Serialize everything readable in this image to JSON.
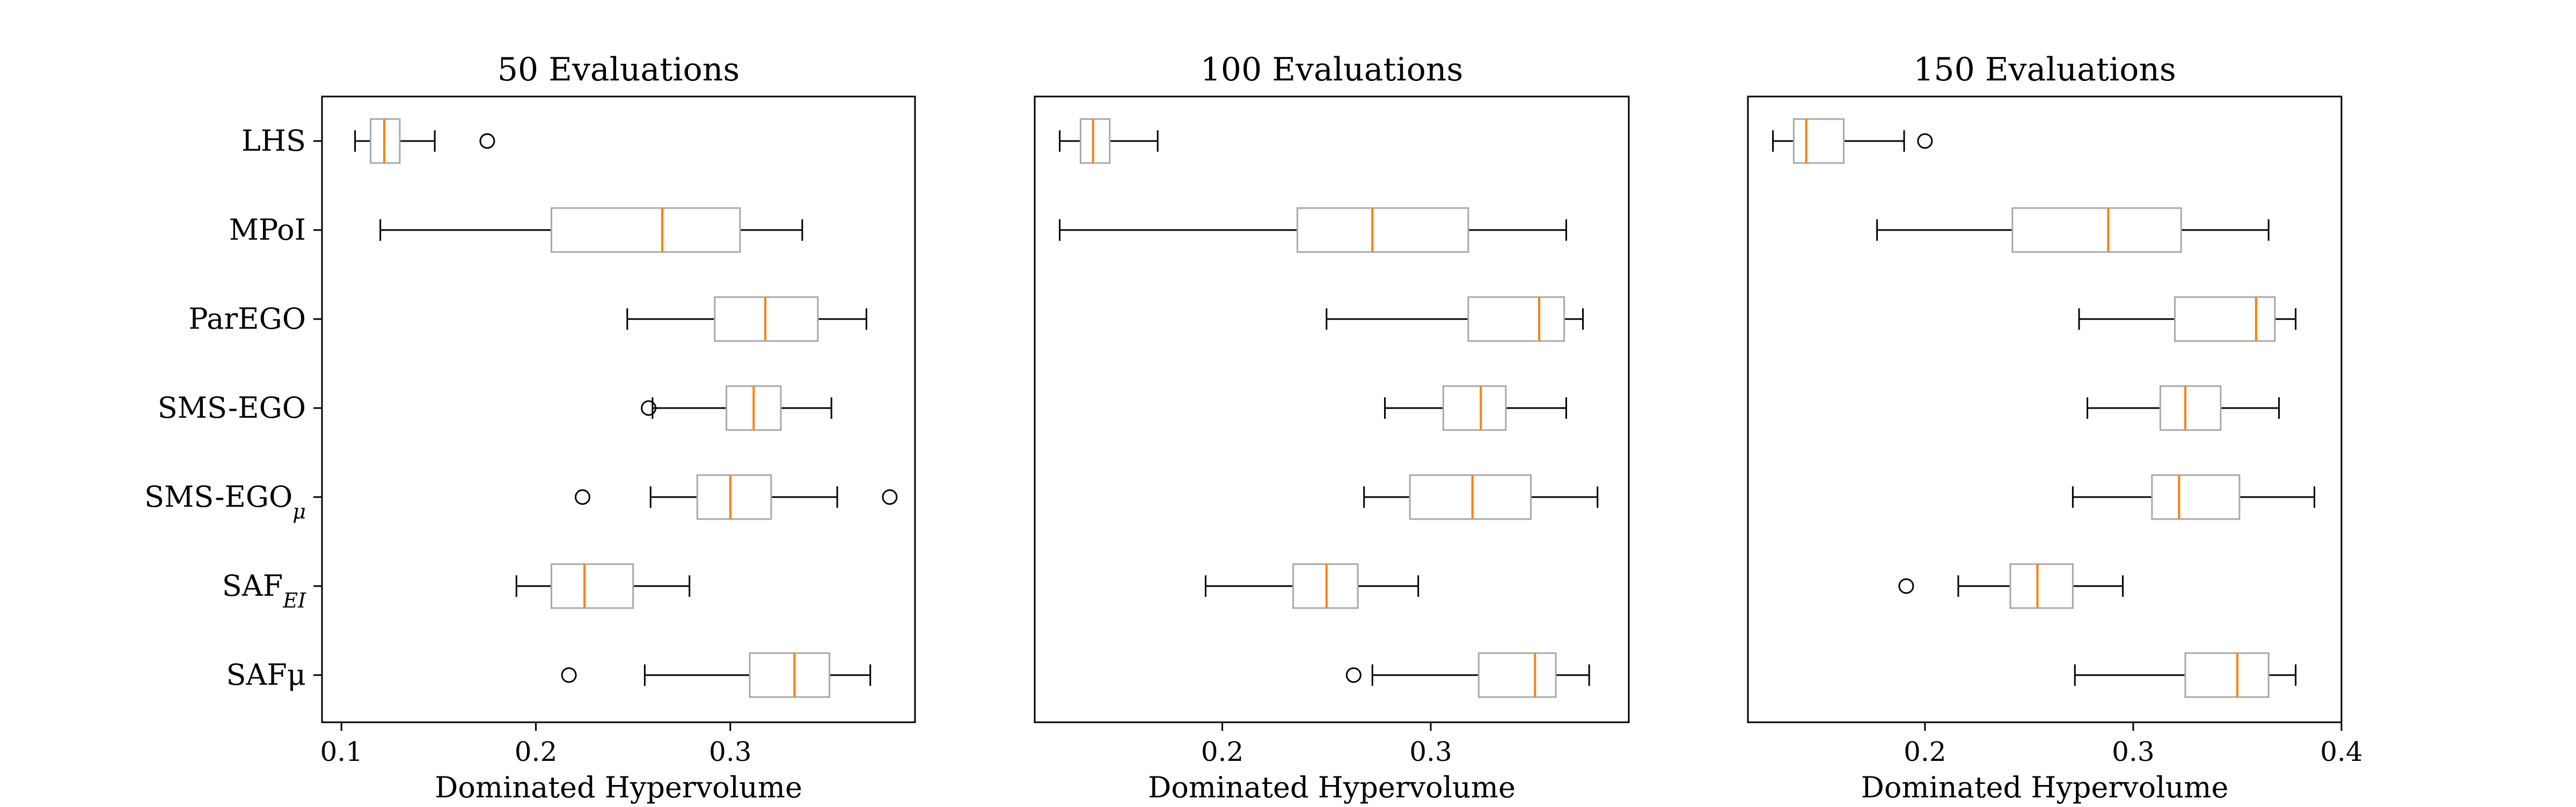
{
  "chart_data": [
    {
      "type": "boxplot",
      "title": "50 Evaluations",
      "xlabel": "Dominated Hypervolume",
      "xlim": [
        0.09,
        0.395
      ],
      "xticks": [
        0.1,
        0.2,
        0.3
      ],
      "xtick_labels": [
        "0.1",
        "0.2",
        "0.3"
      ],
      "categories": [
        "LHS",
        "MPoI",
        "ParEGO",
        "SMS-EGO",
        "SMS-EGO_μ",
        "SAF_EI",
        "SAFμ"
      ],
      "boxes": [
        {
          "whisker_low": 0.107,
          "q1": 0.115,
          "median": 0.122,
          "q3": 0.13,
          "whisker_high": 0.148,
          "outliers": [
            0.175
          ]
        },
        {
          "whisker_low": 0.12,
          "q1": 0.208,
          "median": 0.265,
          "q3": 0.305,
          "whisker_high": 0.337,
          "outliers": []
        },
        {
          "whisker_low": 0.247,
          "q1": 0.292,
          "median": 0.318,
          "q3": 0.345,
          "whisker_high": 0.37,
          "outliers": []
        },
        {
          "whisker_low": 0.26,
          "q1": 0.298,
          "median": 0.312,
          "q3": 0.326,
          "whisker_high": 0.352,
          "outliers": [
            0.258
          ]
        },
        {
          "whisker_low": 0.259,
          "q1": 0.283,
          "median": 0.3,
          "q3": 0.321,
          "whisker_high": 0.355,
          "outliers": [
            0.224,
            0.382
          ]
        },
        {
          "whisker_low": 0.19,
          "q1": 0.208,
          "median": 0.225,
          "q3": 0.25,
          "whisker_high": 0.279,
          "outliers": []
        },
        {
          "whisker_low": 0.256,
          "q1": 0.31,
          "median": 0.333,
          "q3": 0.351,
          "whisker_high": 0.372,
          "outliers": [
            0.217
          ]
        }
      ]
    },
    {
      "type": "boxplot",
      "title": "100 Evaluations",
      "xlabel": "Dominated Hypervolume",
      "xlim": [
        0.11,
        0.395
      ],
      "xticks": [
        0.2,
        0.3
      ],
      "xtick_labels": [
        "0.2",
        "0.3"
      ],
      "categories": [
        "LHS",
        "MPoI",
        "ParEGO",
        "SMS-EGO",
        "SMS-EGO_μ",
        "SAF_EI",
        "SAFμ"
      ],
      "boxes": [
        {
          "whisker_low": 0.122,
          "q1": 0.132,
          "median": 0.138,
          "q3": 0.146,
          "whisker_high": 0.169,
          "outliers": []
        },
        {
          "whisker_low": 0.122,
          "q1": 0.236,
          "median": 0.272,
          "q3": 0.318,
          "whisker_high": 0.365,
          "outliers": []
        },
        {
          "whisker_low": 0.25,
          "q1": 0.318,
          "median": 0.352,
          "q3": 0.364,
          "whisker_high": 0.373,
          "outliers": []
        },
        {
          "whisker_low": 0.278,
          "q1": 0.306,
          "median": 0.324,
          "q3": 0.336,
          "whisker_high": 0.365,
          "outliers": []
        },
        {
          "whisker_low": 0.268,
          "q1": 0.29,
          "median": 0.32,
          "q3": 0.348,
          "whisker_high": 0.38,
          "outliers": []
        },
        {
          "whisker_low": 0.192,
          "q1": 0.234,
          "median": 0.25,
          "q3": 0.265,
          "whisker_high": 0.294,
          "outliers": []
        },
        {
          "whisker_low": 0.272,
          "q1": 0.323,
          "median": 0.35,
          "q3": 0.36,
          "whisker_high": 0.376,
          "outliers": [
            0.263
          ]
        }
      ]
    },
    {
      "type": "boxplot",
      "title": "150 Evaluations",
      "xlabel": "Dominated Hypervolume",
      "xlim": [
        0.115,
        0.4
      ],
      "xticks": [
        0.2,
        0.3,
        0.4
      ],
      "xtick_labels": [
        "0.2",
        "0.3",
        "0.4"
      ],
      "categories": [
        "LHS",
        "MPoI",
        "ParEGO",
        "SMS-EGO",
        "SMS-EGO_μ",
        "SAF_EI",
        "SAFμ"
      ],
      "boxes": [
        {
          "whisker_low": 0.127,
          "q1": 0.137,
          "median": 0.143,
          "q3": 0.161,
          "whisker_high": 0.19,
          "outliers": [
            0.2
          ]
        },
        {
          "whisker_low": 0.177,
          "q1": 0.242,
          "median": 0.288,
          "q3": 0.323,
          "whisker_high": 0.365,
          "outliers": []
        },
        {
          "whisker_low": 0.274,
          "q1": 0.32,
          "median": 0.359,
          "q3": 0.368,
          "whisker_high": 0.378,
          "outliers": []
        },
        {
          "whisker_low": 0.278,
          "q1": 0.313,
          "median": 0.325,
          "q3": 0.342,
          "whisker_high": 0.37,
          "outliers": []
        },
        {
          "whisker_low": 0.271,
          "q1": 0.309,
          "median": 0.322,
          "q3": 0.351,
          "whisker_high": 0.387,
          "outliers": []
        },
        {
          "whisker_low": 0.216,
          "q1": 0.241,
          "median": 0.254,
          "q3": 0.271,
          "whisker_high": 0.295,
          "outliers": [
            0.191
          ]
        },
        {
          "whisker_low": 0.272,
          "q1": 0.325,
          "median": 0.35,
          "q3": 0.365,
          "whisker_high": 0.378,
          "outliers": []
        }
      ]
    }
  ],
  "category_labels": [
    {
      "base": "LHS",
      "sub": ""
    },
    {
      "base": "MPoI",
      "sub": ""
    },
    {
      "base": "ParEGO",
      "sub": ""
    },
    {
      "base": "SMS-EGO",
      "sub": ""
    },
    {
      "base": "SMS-EGO",
      "sub": "μ"
    },
    {
      "base": "SAF",
      "sub": "EI"
    },
    {
      "base": "SAFμ",
      "sub": ""
    }
  ],
  "colors": {
    "box": "#a8a8a8",
    "median": "#ff7f0e",
    "whisker": "#000000",
    "axes": "#000000"
  }
}
